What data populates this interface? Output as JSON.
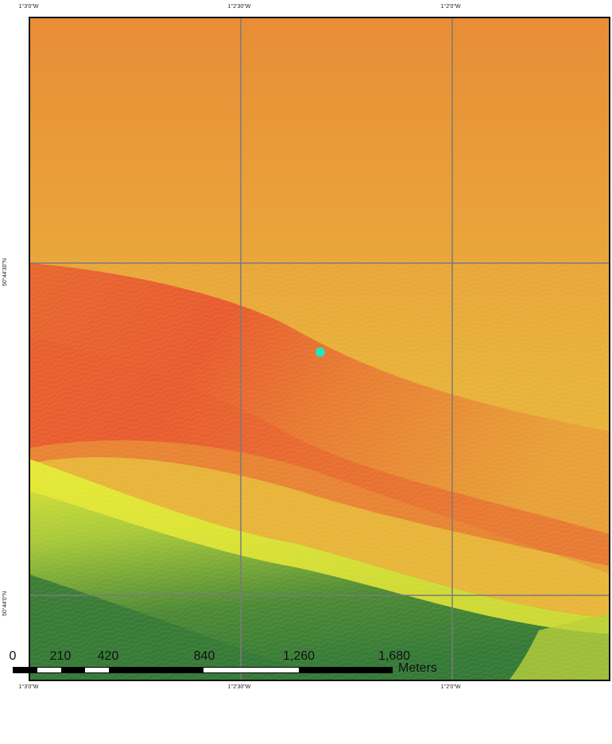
{
  "map": {
    "grid_labels": {
      "top": [
        "1°3'0\"W",
        "1°2'30\"W",
        "1°2'0\"W"
      ],
      "bottom": [
        "1°3'0\"W",
        "1°2'30\"W",
        "1°2'0\"W"
      ],
      "left": [
        "50°44'30\"N",
        "50°44'0\"N"
      ]
    },
    "marker_color": "#22e5b8",
    "colors": {
      "high": "#e88f35",
      "mid": "#e98030",
      "ridge": "#e85a2f",
      "yellow": "#e7e92f",
      "green": "#3a7d3a"
    }
  },
  "scale_bar": {
    "tick_labels": [
      "0",
      "210",
      "420",
      "840",
      "1,260",
      "1,680"
    ],
    "units": "Meters"
  }
}
